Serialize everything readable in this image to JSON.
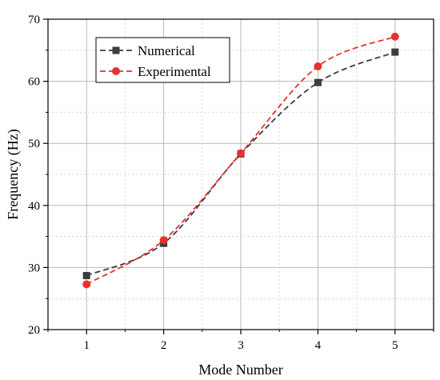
{
  "chart_data": {
    "type": "line",
    "xlabel": "Mode Number",
    "ylabel": "Frequency (Hz)",
    "xlim": [
      0.5,
      5.5
    ],
    "ylim": [
      20,
      70
    ],
    "x": [
      1,
      2,
      3,
      4,
      5
    ],
    "x_ticks": [
      1,
      2,
      3,
      4,
      5
    ],
    "y_ticks": [
      20,
      30,
      40,
      50,
      60,
      70
    ],
    "grid": true,
    "legend_position": "top-left",
    "series": [
      {
        "name": "Numerical",
        "values": [
          28.7,
          33.9,
          48.3,
          59.8,
          64.7
        ],
        "color": "#3c3c3c",
        "marker": "square",
        "line_style": "dashed"
      },
      {
        "name": "Experimental",
        "values": [
          27.3,
          34.4,
          48.4,
          62.4,
          67.2
        ],
        "color": "#e8312f",
        "marker": "circle",
        "line_style": "dashed"
      }
    ]
  }
}
